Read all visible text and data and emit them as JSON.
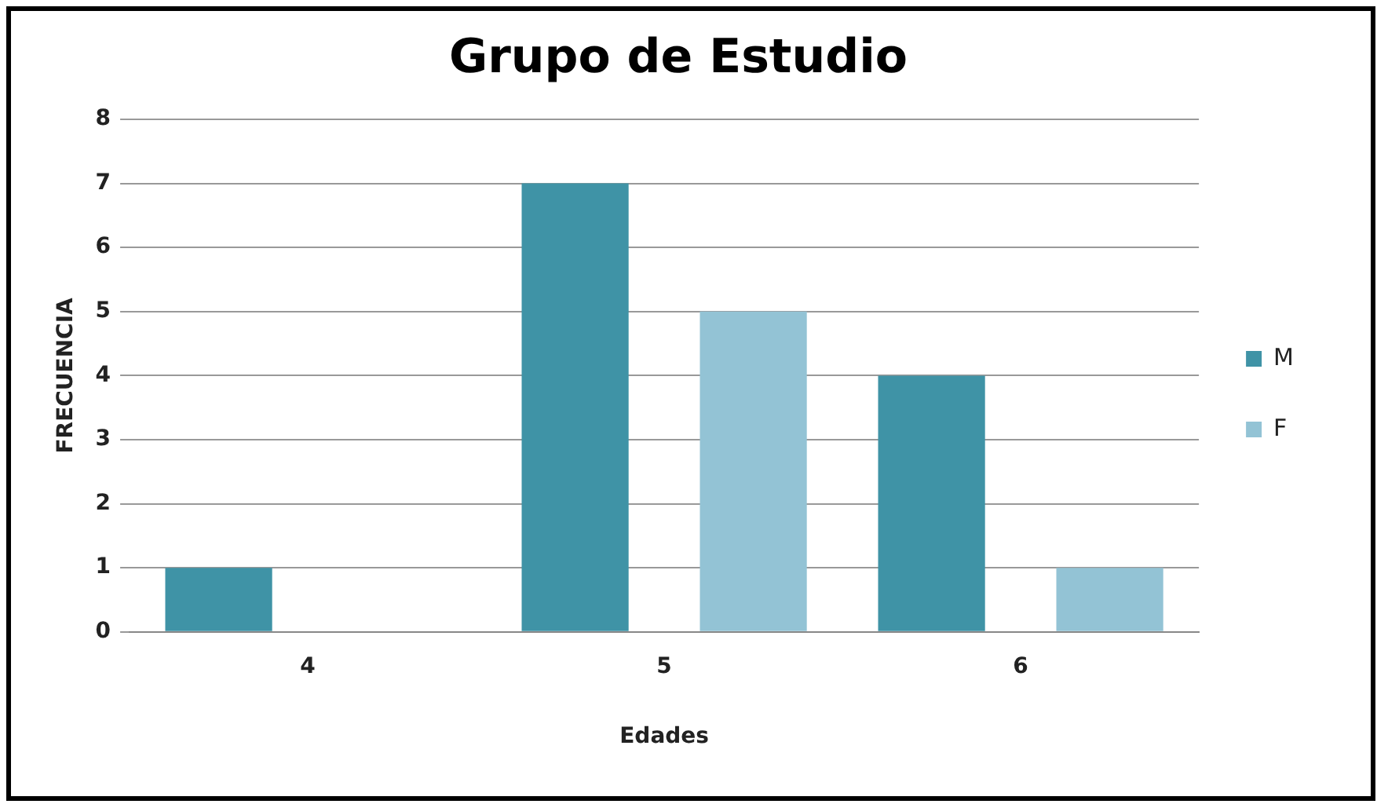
{
  "chart_data": {
    "type": "bar",
    "title": "Grupo de Estudio",
    "xlabel": "Edades",
    "ylabel": "FRECUENCIA",
    "categories": [
      "4",
      "5",
      "6"
    ],
    "series": [
      {
        "name": "M",
        "color": "#3f93a6",
        "values": [
          1,
          7,
          4
        ]
      },
      {
        "name": "F",
        "color": "#93c3d5",
        "values": [
          0,
          5,
          1
        ]
      }
    ],
    "ylim": [
      0,
      8
    ],
    "yticks": [
      0,
      1,
      2,
      3,
      4,
      5,
      6,
      7,
      8
    ],
    "grid": "y",
    "legend": "right"
  }
}
